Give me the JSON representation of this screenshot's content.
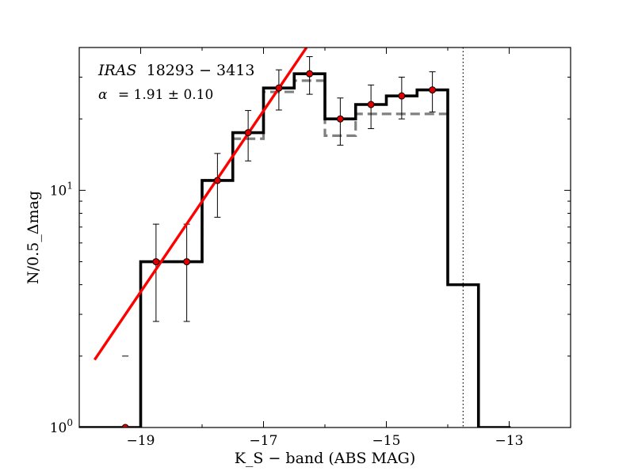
{
  "chart_data": {
    "type": "histogram",
    "xlabel": "K_S − band (ABS MAG)",
    "ylabel": "N/0.5_Δmag",
    "xlim": [
      -20.0,
      -12.0
    ],
    "ylim": [
      1,
      40
    ],
    "yscale": "log",
    "x_reversed": false,
    "x_ticks": [
      -19,
      -17,
      -15,
      -13
    ],
    "x_tick_labels": [
      "−19",
      "−17",
      "−15",
      "−13"
    ],
    "y_ticks": [
      1,
      10
    ],
    "y_tick_label_base": "10",
    "y_tick_label_exps": [
      "0",
      "1"
    ],
    "grid": false,
    "annotations": {
      "source_prefix": "IRAS",
      "source_id": "18293 − 3413",
      "alpha_symbol": "α",
      "alpha_value": "=  1.91 ± 0.10"
    },
    "series": [
      {
        "style": "step-histogram",
        "color": "#000000",
        "bin_edges": [
          -20.0,
          -19.5,
          -19.0,
          -18.5,
          -18.0,
          -17.5,
          -17.0,
          -16.5,
          -16.0,
          -15.5,
          -15.0,
          -14.5,
          -14.0,
          -13.5,
          -13.0
        ],
        "values": [
          1,
          1,
          5,
          5,
          11,
          17.5,
          27,
          31,
          20,
          23,
          25,
          26.5,
          4,
          1
        ]
      },
      {
        "style": "dashed-step-histogram",
        "color": "#808080",
        "bin_edges": [
          -19.0,
          -18.5,
          -18.0,
          -17.5,
          -17.0,
          -16.5,
          -16.0,
          -15.5,
          -15.0,
          -14.5,
          -14.0
        ],
        "values": [
          5,
          5,
          11,
          16.5,
          26,
          29,
          17,
          21,
          21,
          21
        ]
      },
      {
        "style": "points-with-errorbars",
        "color": "#e00000",
        "x": [
          -19.25,
          -18.75,
          -18.25,
          -17.75,
          -17.25,
          -16.75,
          -16.25,
          -15.75,
          -15.25,
          -14.75,
          -14.25
        ],
        "y": [
          1,
          5,
          5,
          11,
          17.5,
          27,
          31,
          20,
          23,
          25,
          26.5
        ],
        "yerr_low": [
          null,
          2.2,
          2.2,
          3.3,
          4.2,
          5.2,
          5.6,
          4.5,
          4.8,
          5.0,
          5.1
        ],
        "yerr_high": [
          null,
          2.2,
          2.2,
          3.3,
          4.2,
          5.2,
          5.6,
          4.5,
          4.8,
          5.0,
          5.1
        ]
      },
      {
        "style": "fit-line",
        "color": "#ff0000",
        "x": [
          -19.75,
          -16.3
        ],
        "y": [
          1.93,
          40
        ]
      },
      {
        "style": "vertical-dotted-line",
        "color": "#000000",
        "x": -13.75
      }
    ],
    "extra_marks": [
      {
        "style": "short-dash",
        "x": -19.25,
        "y": 2.0
      }
    ]
  }
}
